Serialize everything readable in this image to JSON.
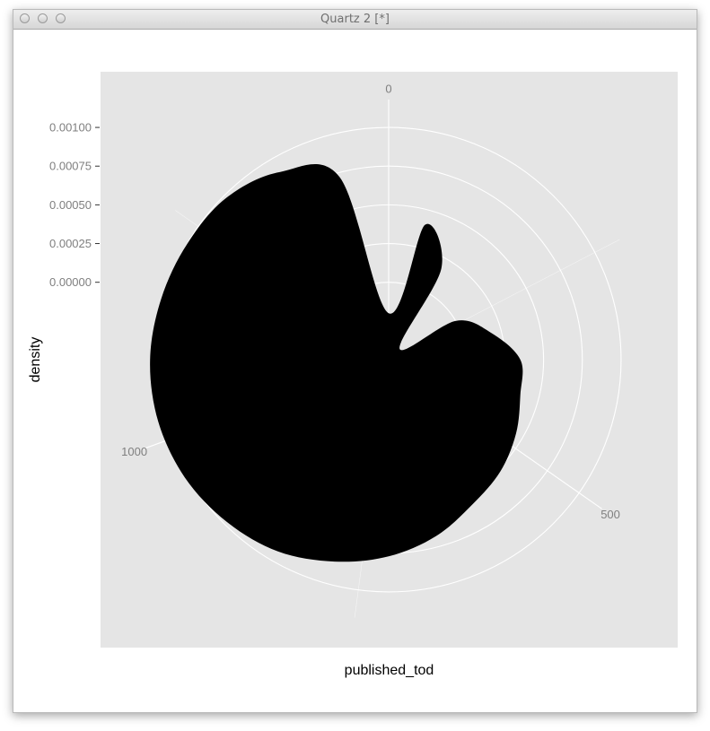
{
  "window": {
    "title": "Quartz 2 [*]"
  },
  "chart_data": {
    "type": "area",
    "coord": "polar",
    "title": "",
    "xlabel": "published_tod",
    "ylabel": "density",
    "theta_ticks": [
      "0",
      "500",
      "1000"
    ],
    "theta_tick_values": [
      0,
      500,
      1000
    ],
    "theta_range": [
      0,
      1440
    ],
    "r_ticks": [
      "0.00000",
      "0.00025",
      "0.00050",
      "0.00075",
      "0.00100"
    ],
    "r_tick_values": [
      0,
      0.00025,
      0.0005,
      0.00075,
      0.001
    ],
    "r_range": [
      -0.0005,
      0.00118
    ],
    "grid": true,
    "colors": {
      "panel": "#e5e5e5",
      "grid": "#ffffff",
      "fill": "#000000",
      "axis_text": "#7f7f7f",
      "label": "#000000"
    },
    "series": [
      {
        "x": [
          0,
          60,
          120,
          180,
          240,
          300,
          360,
          420,
          480,
          540,
          600,
          660,
          720,
          780,
          840,
          900,
          960,
          1020,
          1080,
          1140,
          1200,
          1260,
          1320,
          1380,
          1440
        ],
        "y": [
          -0.0002,
          0.0004,
          0.00018,
          -0.0004,
          0.0,
          0.00018,
          0.00035,
          0.00038,
          0.00045,
          0.00052,
          0.00058,
          0.00068,
          0.00077,
          0.00085,
          0.00093,
          0.00098,
          0.00102,
          0.00104,
          0.00104,
          0.00102,
          0.001,
          0.00098,
          0.0009,
          0.00072,
          -0.0002
        ]
      }
    ]
  }
}
